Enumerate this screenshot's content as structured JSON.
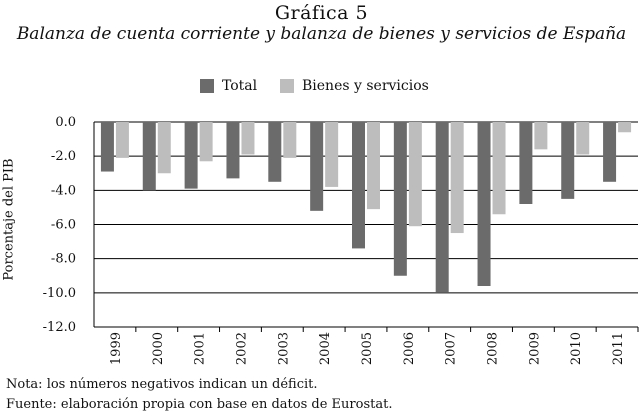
{
  "figure": {
    "label": "Gráfica 5",
    "title": "Balanza de cuenta corriente y balanza de bienes y servicios de España"
  },
  "notes": {
    "note": "Nota: los números negativos indican un déficit.",
    "source": "Fuente: elaboración propia con base en datos de Eurostat."
  },
  "colors": {
    "total": "#6b6b6b",
    "bienes": "#bdbdbd",
    "grid": "#000000"
  },
  "chart_data": {
    "type": "bar",
    "title": "Balanza de cuenta corriente y balanza de bienes y servicios de España",
    "xlabel": "",
    "ylabel": "Porcentaje del PIB",
    "ylim": [
      -12.0,
      0.0
    ],
    "yticks": [
      "0.0",
      "-2.0",
      "-4.0",
      "-6.0",
      "-8.0",
      "-10.0",
      "-12.0"
    ],
    "ytick_values": [
      0,
      -2,
      -4,
      -6,
      -8,
      -10,
      -12
    ],
    "grid": true,
    "legend_position": "top",
    "categories": [
      "1999",
      "2000",
      "2001",
      "2002",
      "2003",
      "2004",
      "2005",
      "2006",
      "2007",
      "2008",
      "2009",
      "2010",
      "2011"
    ],
    "series": [
      {
        "name": "Total",
        "values": [
          -2.9,
          -4.0,
          -3.9,
          -3.3,
          -3.5,
          -5.2,
          -7.4,
          -9.0,
          -10.0,
          -9.6,
          -4.8,
          -4.5,
          -3.5
        ]
      },
      {
        "name": "Bienes y servicios",
        "values": [
          -2.1,
          -3.0,
          -2.3,
          -1.9,
          -2.1,
          -3.8,
          -5.1,
          -6.1,
          -6.5,
          -5.4,
          -1.6,
          -1.9,
          -0.6
        ]
      }
    ]
  }
}
